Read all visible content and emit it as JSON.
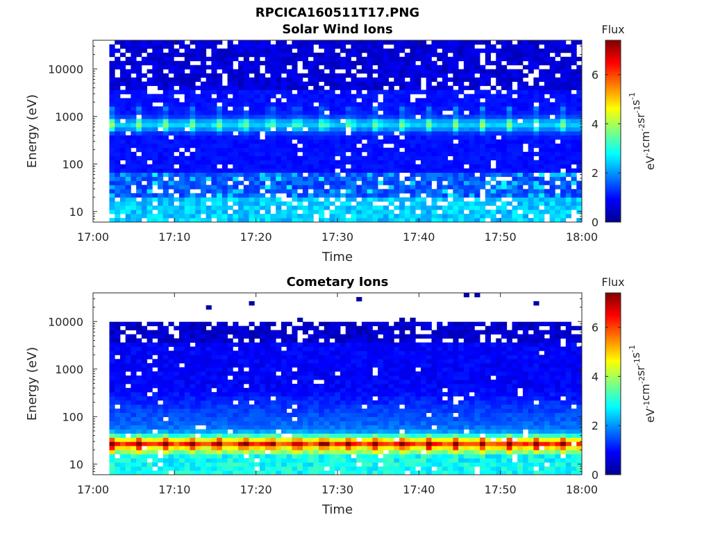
{
  "figure": {
    "title": "RPCICA160511T17.PNG"
  },
  "chart_data": [
    {
      "type": "heatmap",
      "title": "Solar Wind Ions",
      "xlabel": "Time",
      "ylabel": "Energy (eV)",
      "x_ticks": [
        "17:00",
        "17:10",
        "17:20",
        "17:30",
        "17:40",
        "17:50",
        "18:00"
      ],
      "y_ticks": [
        "10",
        "100",
        "1000",
        "10000"
      ],
      "y_scale": "log",
      "ylim": [
        6,
        40000
      ],
      "xlim": [
        "17:00",
        "18:00"
      ],
      "data_start": "17:02",
      "colorbar": {
        "title": "Flux",
        "label": "eV-1cm-2sr-1s-1",
        "ticks": [
          "0",
          "2",
          "4",
          "6"
        ],
        "range": [
          0,
          7.4
        ],
        "colormap": "jet"
      },
      "features": [
        {
          "energy_range_eV": [
            500,
            900
          ],
          "flux": 3.5,
          "description": "periodic peaks"
        },
        {
          "energy_range_eV": [
            6,
            20
          ],
          "flux": 2.3
        }
      ]
    },
    {
      "type": "heatmap",
      "title": "Cometary Ions",
      "xlabel": "Time",
      "ylabel": "Energy (eV)",
      "x_ticks": [
        "17:00",
        "17:10",
        "17:20",
        "17:30",
        "17:40",
        "17:50",
        "18:00"
      ],
      "y_ticks": [
        "10",
        "100",
        "1000",
        "10000"
      ],
      "y_scale": "log",
      "ylim": [
        6,
        40000
      ],
      "xlim": [
        "17:00",
        "18:00"
      ],
      "data_start": "17:02",
      "colorbar": {
        "title": "Flux",
        "label": "eV-1cm-2sr-1s-1",
        "ticks": [
          "0",
          "2",
          "4",
          "6"
        ],
        "range": [
          0,
          7.4
        ],
        "colormap": "jet"
      },
      "features": [
        {
          "energy_range_eV": [
            20,
            40
          ],
          "flux": 5.2,
          "description": "periodic peaks"
        },
        {
          "energy_range_eV": [
            6,
            20
          ],
          "flux": 3.0
        }
      ]
    }
  ]
}
